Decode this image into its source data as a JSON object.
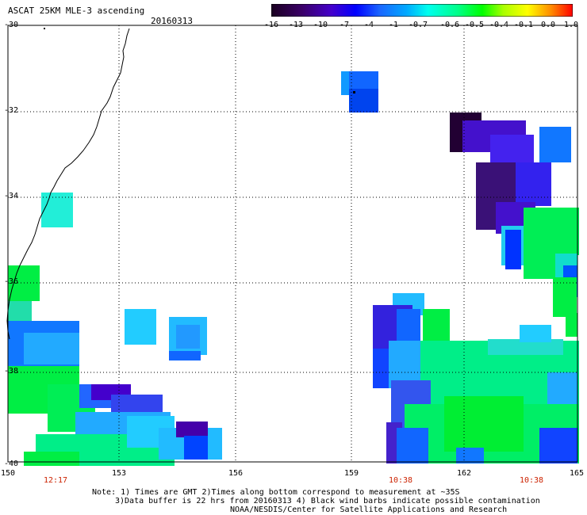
{
  "header": {
    "title": "ASCAT 25KM MLE-3 ascending",
    "date": "20160313"
  },
  "legend": {
    "labels": [
      "-16",
      "-13",
      "-10",
      "-7",
      "-4",
      "-1",
      "-0.7",
      "-0.6",
      "-0.5",
      "-0.4",
      "-0.1",
      "0.0",
      "1.0"
    ],
    "colors": [
      "#1a0020",
      "#3a0066",
      "#4400cc",
      "#0000ff",
      "#1a66ff",
      "#00aaff",
      "#00ffee",
      "#00ff88",
      "#00ff00",
      "#aaff00",
      "#ffff00",
      "#ff8800",
      "#ff0000"
    ]
  },
  "axes": {
    "lat_labels": [
      "-30",
      "-32",
      "-34",
      "-36",
      "-38",
      "-40"
    ],
    "lon_labels": [
      "150",
      "153",
      "156",
      "159",
      "162",
      "165"
    ]
  },
  "time_labels": [
    "12:17",
    "10:38",
    "10:38"
  ],
  "notes": {
    "line1": "Note: 1) Times are GMT 2)Times along bottom correspond to measurement at ~35S",
    "line2": "3)Data buffer is 22 hrs from 20160313 4) Black wind barbs indicate possible contamination",
    "line3": "NOAA/NESDIS/Center for Satellite Applications and Research"
  }
}
